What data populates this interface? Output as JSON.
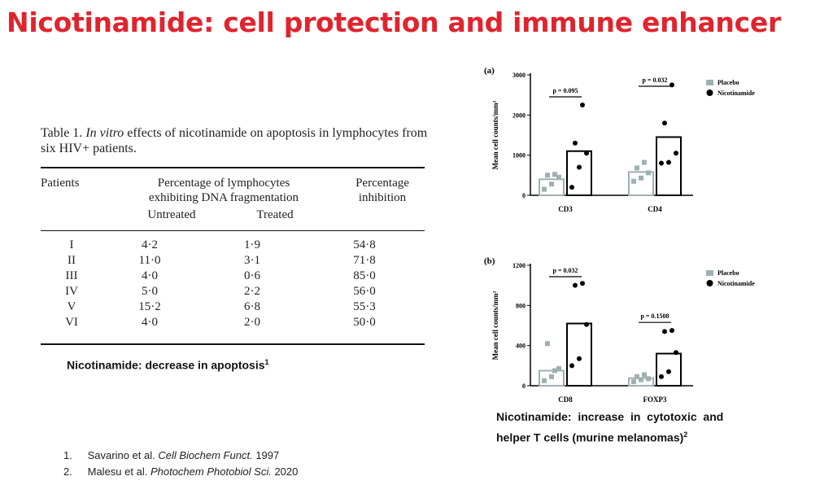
{
  "slide": {
    "title": "Nicotinamide: cell protection and immune enhancer"
  },
  "table": {
    "caption_prefix": "Table 1.",
    "caption_italic": "In vitro",
    "caption_rest": "effects of nicotinamide on apoptosis in lymphocytes from six HIV+ patients.",
    "headers": {
      "patients": "Patients",
      "group_line1": "Percentage of lymphocytes",
      "group_line2": "exhibiting DNA fragmentation",
      "untreated": "Untreated",
      "treated": "Treated",
      "inhibition_line1": "Percentage",
      "inhibition_line2": "inhibition"
    },
    "rows": [
      {
        "patient": "I",
        "untreated": "4·2",
        "treated": "1·9",
        "inhibition": "54·8"
      },
      {
        "patient": "II",
        "untreated": "11·0",
        "treated": "3·1",
        "inhibition": "71·8"
      },
      {
        "patient": "III",
        "untreated": "4·0",
        "treated": "0·6",
        "inhibition": "85·0"
      },
      {
        "patient": "IV",
        "untreated": "5·0",
        "treated": "2·2",
        "inhibition": "56·0"
      },
      {
        "patient": "V",
        "untreated": "15·2",
        "treated": "6·8",
        "inhibition": "55·3"
      },
      {
        "patient": "VI",
        "untreated": "4·0",
        "treated": "2·0",
        "inhibition": "50·0"
      }
    ]
  },
  "notes": {
    "left_text": "Nicotinamide: decrease in apoptosis",
    "left_sup": "1",
    "right_line1": "Nicotinamide:  increase  in  cytotoxic  and",
    "right_line2": "helper T cells (murine melanomas)",
    "right_sup": "2"
  },
  "references": [
    {
      "num": "1.",
      "authors": "Savarino  et al.",
      "journal": "Cell Biochem Funct.",
      "year": "1997"
    },
    {
      "num": "2.",
      "authors": "Malesu  et al.",
      "journal": "Photochem Photobiol Sci.",
      "year": "2020"
    }
  ],
  "chart_data": [
    {
      "type": "bar",
      "panel_label": "(a)",
      "ylabel": "Mean cell counts/mm²",
      "ylim": [
        0,
        3000
      ],
      "yticks": [
        "0",
        "1000",
        "2000",
        "3000"
      ],
      "categories": [
        "CD3",
        "CD4"
      ],
      "series": [
        {
          "name": "Placebo",
          "color": "#9fb0b3",
          "values": [
            400,
            580
          ],
          "points": [
            [
              150,
              280,
              450,
              500,
              520
            ],
            [
              350,
              430,
              560,
              680,
              820
            ]
          ]
        },
        {
          "name": "Nicotinamide",
          "color": "#000000",
          "values": [
            1100,
            1450
          ],
          "points": [
            [
              200,
              700,
              1050,
              1300,
              2250
            ],
            [
              800,
              820,
              1050,
              1800,
              2750
            ]
          ]
        }
      ],
      "pvalues": [
        "p = 0.095",
        "p = 0.032"
      ],
      "legend": "top-right"
    },
    {
      "type": "bar",
      "panel_label": "(b)",
      "ylabel": "Mean cell counts/mm²",
      "ylim": [
        0,
        1200
      ],
      "yticks": [
        "0",
        "400",
        "800",
        "1200"
      ],
      "categories": [
        "CD8",
        "FOXP3"
      ],
      "series": [
        {
          "name": "Placebo",
          "color": "#9fb0b3",
          "values": [
            150,
            75
          ],
          "points": [
            [
              50,
              90,
              170,
              420,
              150
            ],
            [
              40,
              60,
              70,
              90,
              110
            ]
          ]
        },
        {
          "name": "Nicotinamide",
          "color": "#000000",
          "values": [
            620,
            320
          ],
          "points": [
            [
              200,
              270,
              610,
              1000,
              1020
            ],
            [
              90,
              140,
              330,
              540,
              550
            ]
          ]
        }
      ],
      "pvalues": [
        "p = 0.032",
        "p = 0.1508"
      ],
      "legend": "top-right"
    }
  ]
}
